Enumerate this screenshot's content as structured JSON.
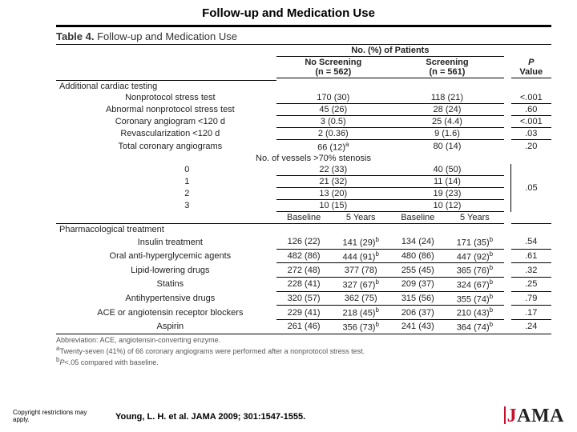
{
  "slide_title": "Follow-up and Medication Use",
  "table_label": "Table 4.",
  "table_title": "Follow-up and Medication Use",
  "super_header": "No. (%) of Patients",
  "col": {
    "no_screening": "No Screening",
    "no_screening_n": "(n = 562)",
    "screening": "Screening",
    "screening_n": "(n = 561)",
    "pvalue_top": "P",
    "pvalue_bot": "Value",
    "baseline": "Baseline",
    "five_years": "5 Years"
  },
  "section1_title": "Additional cardiac testing",
  "rows1": [
    {
      "label": "Nonprotocol stress test",
      "ns": "170 (30)",
      "sc": "118 (21)",
      "p": "<.001"
    },
    {
      "label": "Abnormal nonprotocol stress test",
      "ns": "45 (26)",
      "sc": "28 (24)",
      "p": ".60"
    },
    {
      "label": "Coronary angiogram <120 d",
      "ns": "3 (0.5)",
      "sc": "25 (4.4)",
      "p": "<.001"
    },
    {
      "label": "Revascularization <120 d",
      "ns": "2 (0.36)",
      "sc": "9 (1.6)",
      "p": ".03"
    },
    {
      "label": "Total coronary angiograms",
      "ns": "66 (12)",
      "ns_sup": "a",
      "sc": "80 (14)",
      "p": ".20"
    }
  ],
  "stenosis_label": "No. of vessels >70% stenosis",
  "stenosis_rows": [
    {
      "k": "0",
      "ns": "22 (33)",
      "sc": "40 (50)"
    },
    {
      "k": "1",
      "ns": "21 (32)",
      "sc": "11 (14)"
    },
    {
      "k": "2",
      "ns": "13 (20)",
      "sc": "19 (23)"
    },
    {
      "k": "3",
      "ns": "10 (15)",
      "sc": "10 (12)"
    }
  ],
  "stenosis_p": ".05",
  "section2_title": "Pharmacological treatment",
  "rows2": [
    {
      "label": "Insulin treatment",
      "nb": "126 (22)",
      "n5": "141 (29)",
      "n5s": "b",
      "sb": "134 (24)",
      "s5": "171 (35)",
      "s5s": "b",
      "p": ".54"
    },
    {
      "label": "Oral anti-hyperglycemic agents",
      "nb": "482 (86)",
      "n5": "444 (91)",
      "n5s": "b",
      "sb": "480 (86)",
      "s5": "447 (92)",
      "s5s": "b",
      "p": ".61"
    },
    {
      "label": "Lipid-lowering drugs",
      "nb": "272 (48)",
      "n5": "377 (78)",
      "sb": "255 (45)",
      "s5": "365 (76)",
      "s5s": "b",
      "p": ".32"
    },
    {
      "label": "Statins",
      "nb": "228 (41)",
      "n5": "327 (67)",
      "n5s": "b",
      "sb": "209 (37)",
      "s5": "324 (67)",
      "s5s": "b",
      "p": ".25"
    },
    {
      "label": "Antihypertensive drugs",
      "nb": "320 (57)",
      "n5": "362 (75)",
      "sb": "315 (56)",
      "s5": "355 (74)",
      "s5s": "b",
      "p": ".79"
    },
    {
      "label": "ACE or angiotensin receptor blockers",
      "nb": "229 (41)",
      "n5": "218 (45)",
      "n5s": "b",
      "sb": "206 (37)",
      "s5": "210 (43)",
      "s5s": "b",
      "p": ".17"
    },
    {
      "label": "Aspirin",
      "nb": "261 (46)",
      "n5": "356 (73)",
      "n5s": "b",
      "sb": "241 (43)",
      "s5": "364 (74)",
      "s5s": "b",
      "p": ".24"
    }
  ],
  "fn": {
    "abbr": "Abbreviation: ACE, angiotensin-converting enzyme.",
    "a": "Twenty-seven (41%) of 66 coronary angiograms were performed after a nonprotocol stress test.",
    "b": "P<.05 compared with baseline."
  },
  "copyright": "Copyright restrictions may apply.",
  "citation": "Young, L. H. et al. JAMA 2009; 301:1547-1555.",
  "logo": {
    "j": "J",
    "ama": "AMA"
  },
  "colors": {
    "rule": "#000000",
    "accent": "#c8102e",
    "text": "#222222",
    "fn": "#555555",
    "bg": "#ffffff"
  }
}
